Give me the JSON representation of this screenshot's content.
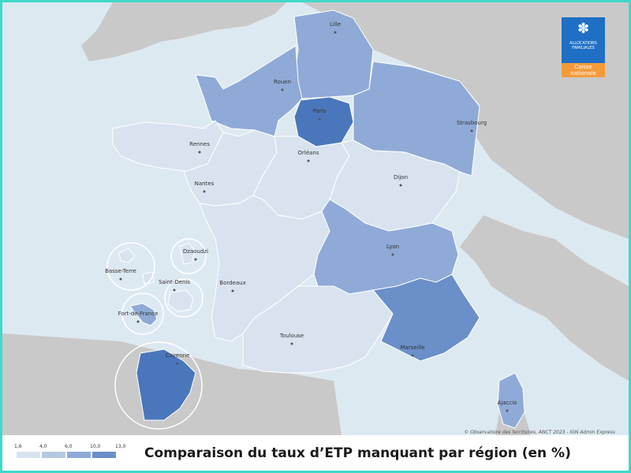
{
  "title": "Comparaison du taux d’ETP manquant par région (en %)",
  "credit": "© Observatoire des territoires, ANCT 2023 - IGN Admin Express",
  "logo": {
    "line1": "ALLOCATIONS",
    "line2": "FAMILIALES",
    "line3": "Caisse",
    "line4": "nationale"
  },
  "legend": {
    "ticks": [
      "1,6",
      "4,0",
      "6,0",
      "10,0",
      "13,0"
    ],
    "colors": [
      "#d9e3f0",
      "#b5c8e2",
      "#8faad6",
      "#6a8fc9",
      "#4a77bb"
    ]
  },
  "colors": {
    "sea": "#dde9f1",
    "land": "#c9c9c9",
    "border": "#ffffff"
  },
  "regions": [
    {
      "name": "hauts-de-france",
      "class": 2
    },
    {
      "name": "normandie",
      "class": 2
    },
    {
      "name": "ile-de-france",
      "class": 4
    },
    {
      "name": "grand-est",
      "class": 2
    },
    {
      "name": "bretagne",
      "class": 0
    },
    {
      "name": "pays-de-la-loire",
      "class": 0
    },
    {
      "name": "centre-val-de-loire",
      "class": 0
    },
    {
      "name": "bourgogne-franche-comte",
      "class": 0
    },
    {
      "name": "nouvelle-aquitaine",
      "class": 0
    },
    {
      "name": "auvergne-rhone-alpes",
      "class": 2
    },
    {
      "name": "occitanie",
      "class": 0
    },
    {
      "name": "provence-alpes-cote-dazur",
      "class": 3
    },
    {
      "name": "corse",
      "class": 2
    },
    {
      "name": "guyane",
      "class": 4
    },
    {
      "name": "guadeloupe",
      "class": 0
    },
    {
      "name": "martinique",
      "class": 2
    },
    {
      "name": "mayotte",
      "class": 0
    },
    {
      "name": "la-reunion",
      "class": 0
    }
  ],
  "cities": [
    {
      "name": "Lille"
    },
    {
      "name": "Rouen"
    },
    {
      "name": "Paris"
    },
    {
      "name": "Strasbourg"
    },
    {
      "name": "Rennes"
    },
    {
      "name": "Orléans"
    },
    {
      "name": "Nantes"
    },
    {
      "name": "Dijon"
    },
    {
      "name": "Lyon"
    },
    {
      "name": "Bordeaux"
    },
    {
      "name": "Toulouse"
    },
    {
      "name": "Marseille"
    },
    {
      "name": "Ajaccio"
    },
    {
      "name": "Basse-Terre"
    },
    {
      "name": "Dzaoudzi"
    },
    {
      "name": "Saint-Denis"
    },
    {
      "name": "Fort-de-France"
    },
    {
      "name": "Cayenne"
    }
  ]
}
